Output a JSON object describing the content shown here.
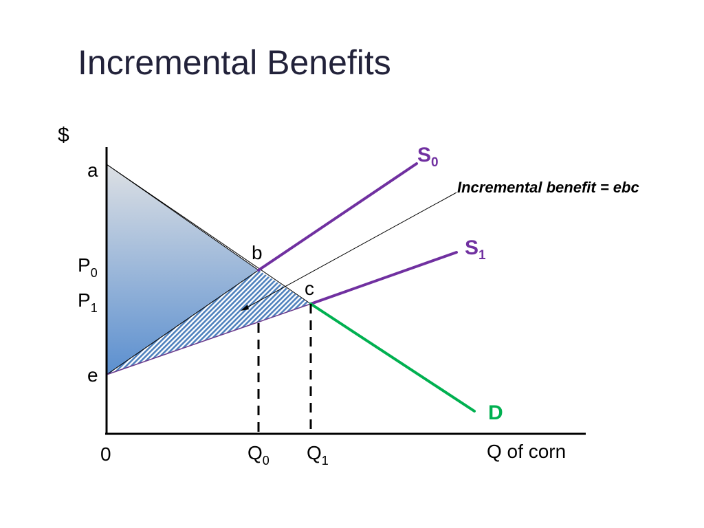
{
  "title": "Incremental Benefits",
  "axes": {
    "y_label": "$",
    "x_label": "Q of corn",
    "origin": "0"
  },
  "points": {
    "a": "a",
    "b": "b",
    "c": "c",
    "e": "e"
  },
  "price_labels": [
    {
      "main": "P",
      "sub": "0"
    },
    {
      "main": "P",
      "sub": "1"
    }
  ],
  "quantity_labels": [
    {
      "main": "Q",
      "sub": "0"
    },
    {
      "main": "Q",
      "sub": "1"
    }
  ],
  "curves": {
    "s0": {
      "main": "S",
      "sub": "0",
      "color": "#7030a0"
    },
    "s1": {
      "main": "S",
      "sub": "1",
      "color": "#7030a0"
    },
    "d": {
      "main": "D",
      "color": "#00b050"
    }
  },
  "annotation": "Incremental benefit = ebc",
  "colors": {
    "gradient_top": "#dde0e4",
    "gradient_bottom": "#5b8fcf",
    "hatch": "#4f81bd"
  }
}
